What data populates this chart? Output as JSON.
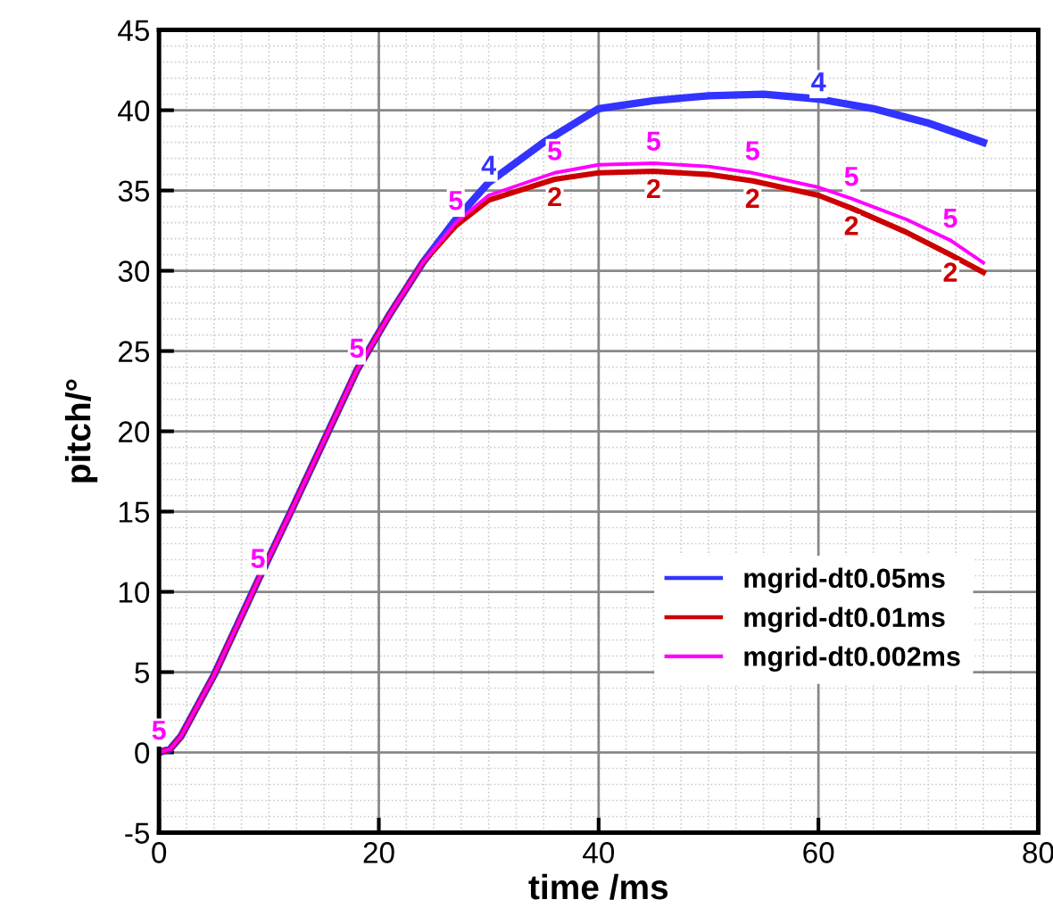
{
  "chart_data": {
    "type": "line",
    "xlabel": "time /ms",
    "ylabel": "pitch/°",
    "xlim": [
      0,
      80
    ],
    "ylim": [
      -5,
      45
    ],
    "xticks": [
      0,
      20,
      40,
      60,
      80
    ],
    "yticks": [
      -5,
      0,
      5,
      10,
      15,
      20,
      25,
      30,
      35,
      40,
      45
    ],
    "grid": true,
    "legend": "bottom right",
    "line_style": "solid",
    "series": [
      {
        "name": "mgrid-dt0.05ms",
        "color": "#3333ff",
        "x": [
          0,
          1,
          2,
          5,
          9,
          12,
          18,
          21,
          24,
          27,
          30,
          35,
          40,
          45,
          50,
          55,
          60,
          65,
          70,
          75
        ],
        "values": [
          0,
          0.2,
          1,
          4.8,
          10.7,
          15,
          23.8,
          27.3,
          30.5,
          33.2,
          35.5,
          38,
          40.1,
          40.6,
          40.9,
          41,
          40.7,
          40.1,
          39.2,
          38
        ]
      },
      {
        "name": "mgrid-dt0.01ms",
        "color": "#cc0000",
        "x": [
          0,
          1,
          2,
          5,
          9,
          12,
          18,
          21,
          24,
          27,
          30,
          36,
          40,
          45,
          50,
          54,
          60,
          63,
          68,
          72,
          75
        ],
        "values": [
          0,
          0.2,
          1,
          4.8,
          10.7,
          15,
          23.8,
          27.3,
          30.5,
          32.8,
          34.4,
          35.7,
          36.1,
          36.2,
          36,
          35.6,
          34.7,
          33.9,
          32.4,
          31,
          29.9
        ]
      },
      {
        "name": "mgrid-dt0.002ms",
        "color": "#ff00ff",
        "x": [
          0,
          1,
          2,
          5,
          9,
          12,
          18,
          21,
          24,
          27,
          30,
          36,
          40,
          45,
          50,
          54,
          60,
          63,
          68,
          72,
          75
        ],
        "values": [
          0,
          0.2,
          1,
          4.8,
          10.7,
          15,
          23.8,
          27.3,
          30.5,
          33,
          34.7,
          36.1,
          36.6,
          36.7,
          36.5,
          36.1,
          35.2,
          34.5,
          33.2,
          31.9,
          30.5
        ]
      }
    ],
    "annotations": [
      {
        "text": "4",
        "x": 30,
        "y": 35.5
      },
      {
        "text": "4",
        "x": 60,
        "y": 40.7
      },
      {
        "text": "2",
        "x": 36,
        "y": 35.7
      },
      {
        "text": "2",
        "x": 45,
        "y": 36.2
      },
      {
        "text": "2",
        "x": 54,
        "y": 35.6
      },
      {
        "text": "2",
        "x": 63,
        "y": 33.9
      },
      {
        "text": "2",
        "x": 72,
        "y": 31
      },
      {
        "text": "5",
        "x": 0,
        "y": 0
      },
      {
        "text": "5",
        "x": 9,
        "y": 10.7
      },
      {
        "text": "5",
        "x": 18,
        "y": 23.8
      },
      {
        "text": "5",
        "x": 27,
        "y": 33
      },
      {
        "text": "5",
        "x": 36,
        "y": 36.1
      },
      {
        "text": "5",
        "x": 45,
        "y": 36.7
      },
      {
        "text": "5",
        "x": 54,
        "y": 36.1
      },
      {
        "text": "5",
        "x": 63,
        "y": 34.5
      },
      {
        "text": "5",
        "x": 72,
        "y": 31.9
      }
    ]
  }
}
